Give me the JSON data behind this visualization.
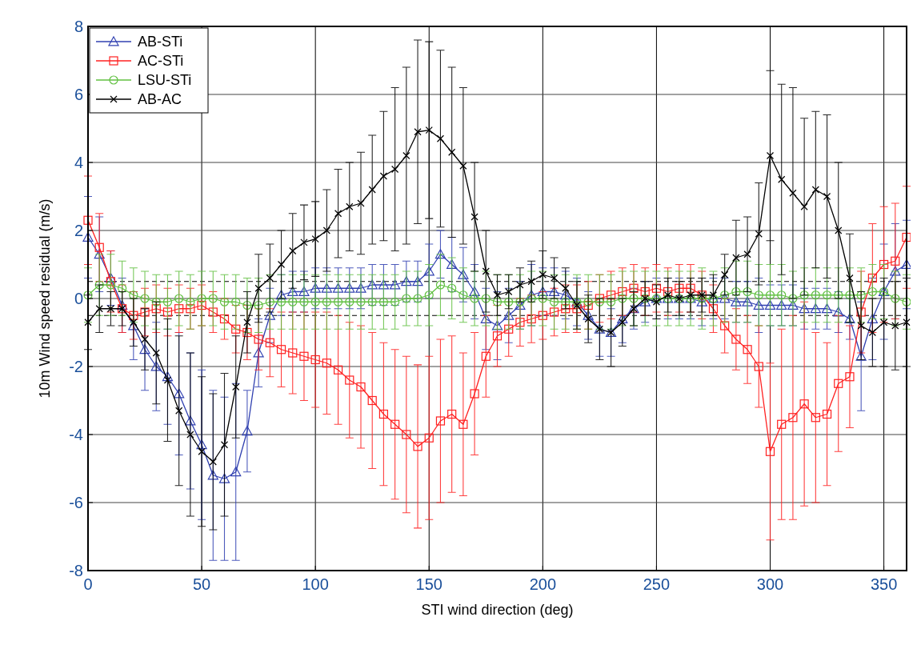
{
  "chart_data": {
    "type": "line",
    "xlabel": "STI wind direction (deg)",
    "ylabel": "10m Wind speed residual (m/s)",
    "x": [
      0,
      5,
      10,
      15,
      20,
      25,
      30,
      35,
      40,
      45,
      50,
      55,
      60,
      65,
      70,
      75,
      80,
      85,
      90,
      95,
      100,
      105,
      110,
      115,
      120,
      125,
      130,
      135,
      140,
      145,
      150,
      155,
      160,
      165,
      170,
      175,
      180,
      185,
      190,
      195,
      200,
      205,
      210,
      215,
      220,
      225,
      230,
      235,
      240,
      245,
      250,
      255,
      260,
      265,
      270,
      275,
      280,
      285,
      290,
      295,
      300,
      305,
      310,
      315,
      320,
      325,
      330,
      335,
      340,
      345,
      350,
      355,
      360
    ],
    "xlim": [
      0,
      360
    ],
    "xticks": [
      0,
      50,
      100,
      150,
      200,
      250,
      300,
      350
    ],
    "ylim": [
      -8,
      8
    ],
    "yticks": [
      -8,
      -6,
      -4,
      -2,
      0,
      2,
      4,
      6,
      8
    ],
    "grid": true,
    "legend": "top left",
    "ref_lines": [
      {
        "axis": "y",
        "value": 0.5,
        "color": "#000000",
        "line_style": "dashed"
      },
      {
        "axis": "y",
        "value": -0.5,
        "color": "#000000",
        "line_style": "dashed"
      }
    ],
    "series": [
      {
        "name": "AB-STi",
        "color": "#3040b0",
        "marker": "triangle",
        "values": [
          1.8,
          1.3,
          0.6,
          -0.2,
          -0.8,
          -1.5,
          -2.0,
          -2.3,
          -2.8,
          -3.6,
          -4.3,
          -5.2,
          -5.3,
          -5.1,
          -3.9,
          -1.6,
          -0.5,
          0.1,
          0.2,
          0.2,
          0.3,
          0.3,
          0.3,
          0.3,
          0.3,
          0.4,
          0.4,
          0.4,
          0.5,
          0.5,
          0.8,
          1.3,
          1.0,
          0.7,
          0.2,
          -0.6,
          -0.8,
          -0.5,
          -0.2,
          0.1,
          0.2,
          0.2,
          0.1,
          -0.1,
          -0.5,
          -0.9,
          -1.0,
          -0.6,
          -0.3,
          -0.1,
          0.0,
          0.0,
          0.0,
          0.0,
          -0.1,
          0.0,
          0.0,
          -0.1,
          -0.1,
          -0.2,
          -0.2,
          -0.2,
          -0.2,
          -0.3,
          -0.3,
          -0.3,
          -0.4,
          -0.6,
          -1.7,
          -0.6,
          0.2,
          0.8,
          1.0
        ],
        "errors": [
          1.2,
          1.1,
          0.8,
          0.8,
          1.0,
          1.2,
          1.3,
          1.4,
          1.8,
          2.0,
          2.2,
          2.5,
          2.4,
          2.6,
          1.2,
          1.0,
          0.8,
          0.6,
          0.6,
          0.6,
          0.6,
          0.6,
          0.6,
          0.6,
          0.6,
          0.6,
          0.6,
          0.6,
          0.6,
          0.6,
          0.8,
          0.7,
          0.8,
          0.8,
          0.8,
          0.9,
          1.0,
          0.8,
          0.7,
          0.9,
          0.7,
          0.7,
          0.7,
          0.7,
          0.7,
          0.8,
          0.7,
          0.7,
          0.6,
          0.6,
          0.6,
          0.6,
          0.6,
          0.6,
          0.7,
          0.6,
          0.6,
          0.6,
          0.6,
          0.8,
          0.6,
          0.6,
          0.6,
          0.6,
          0.6,
          0.6,
          0.6,
          0.6,
          1.6,
          1.2,
          1.4,
          1.4,
          1.3
        ]
      },
      {
        "name": "AC-STi",
        "color": "#ff2020",
        "marker": "square",
        "values": [
          2.3,
          1.5,
          0.5,
          -0.3,
          -0.5,
          -0.4,
          -0.3,
          -0.4,
          -0.3,
          -0.3,
          -0.2,
          -0.4,
          -0.6,
          -0.9,
          -1.0,
          -1.2,
          -1.3,
          -1.5,
          -1.6,
          -1.7,
          -1.8,
          -1.9,
          -2.1,
          -2.4,
          -2.6,
          -3.0,
          -3.4,
          -3.7,
          -4.0,
          -4.35,
          -4.1,
          -3.6,
          -3.4,
          -3.7,
          -2.8,
          -1.7,
          -1.1,
          -0.9,
          -0.7,
          -0.6,
          -0.5,
          -0.4,
          -0.3,
          -0.3,
          -0.2,
          0.0,
          0.1,
          0.2,
          0.3,
          0.2,
          0.3,
          0.2,
          0.3,
          0.3,
          0.1,
          -0.3,
          -0.8,
          -1.2,
          -1.5,
          -2.0,
          -4.5,
          -3.7,
          -3.5,
          -3.1,
          -3.5,
          -3.4,
          -2.5,
          -2.3,
          -0.4,
          0.6,
          1.0,
          1.1,
          1.8
        ],
        "errors": [
          1.3,
          1.0,
          0.9,
          0.7,
          0.7,
          0.7,
          0.7,
          0.7,
          0.7,
          0.6,
          0.6,
          0.6,
          0.6,
          0.7,
          0.8,
          0.9,
          1.0,
          1.1,
          1.2,
          1.3,
          1.4,
          1.5,
          1.6,
          1.7,
          1.8,
          2.0,
          2.1,
          2.2,
          2.3,
          2.4,
          2.4,
          2.4,
          2.3,
          2.1,
          1.8,
          1.2,
          0.9,
          0.8,
          0.7,
          0.7,
          0.7,
          0.7,
          0.7,
          0.7,
          0.7,
          0.7,
          0.7,
          0.7,
          0.7,
          0.7,
          0.7,
          0.7,
          0.7,
          0.7,
          0.7,
          0.7,
          0.8,
          0.9,
          1.0,
          1.2,
          2.6,
          2.8,
          3.0,
          3.0,
          2.5,
          2.1,
          2.0,
          1.5,
          1.2,
          1.6,
          1.7,
          1.7,
          1.5
        ]
      },
      {
        "name": "LSU-STi",
        "color": "#60c040",
        "marker": "circle",
        "values": [
          0.1,
          0.4,
          0.4,
          0.3,
          0.1,
          0.0,
          -0.1,
          -0.1,
          0.0,
          -0.1,
          0.0,
          0.0,
          -0.1,
          -0.1,
          -0.2,
          -0.2,
          -0.1,
          -0.1,
          -0.1,
          -0.1,
          -0.1,
          -0.1,
          -0.1,
          -0.1,
          -0.1,
          -0.1,
          -0.1,
          -0.1,
          0.0,
          0.0,
          0.1,
          0.4,
          0.3,
          0.1,
          0.0,
          0.0,
          -0.1,
          -0.1,
          -0.1,
          0.0,
          0.0,
          -0.1,
          -0.1,
          -0.1,
          -0.1,
          -0.1,
          -0.1,
          0.0,
          0.0,
          0.0,
          0.0,
          0.0,
          0.0,
          0.0,
          0.0,
          0.0,
          0.1,
          0.2,
          0.2,
          0.1,
          0.1,
          0.1,
          0.0,
          0.1,
          0.1,
          0.1,
          0.1,
          0.1,
          0.1,
          0.2,
          0.2,
          0.0,
          -0.1
        ],
        "errors": [
          0.8,
          0.9,
          0.9,
          0.8,
          0.8,
          0.8,
          0.8,
          0.8,
          0.8,
          0.8,
          0.8,
          0.8,
          0.8,
          0.8,
          0.8,
          0.8,
          0.8,
          0.8,
          0.8,
          0.8,
          0.8,
          0.8,
          0.8,
          0.8,
          0.8,
          0.8,
          0.8,
          0.8,
          0.8,
          0.8,
          0.9,
          0.9,
          0.9,
          0.8,
          0.8,
          0.8,
          0.8,
          0.8,
          0.8,
          0.8,
          0.8,
          0.8,
          0.8,
          0.8,
          0.8,
          0.8,
          0.8,
          0.8,
          0.8,
          0.8,
          0.8,
          0.8,
          0.8,
          0.8,
          0.9,
          0.8,
          0.8,
          0.9,
          0.9,
          0.9,
          0.9,
          0.9,
          0.8,
          0.8,
          0.8,
          0.8,
          0.8,
          0.8,
          0.8,
          0.8,
          0.8,
          0.8,
          0.8
        ]
      },
      {
        "name": "AB-AC",
        "color": "#000000",
        "marker": "cross",
        "values": [
          -0.7,
          -0.3,
          -0.3,
          -0.3,
          -0.7,
          -1.2,
          -1.6,
          -2.4,
          -3.3,
          -4.0,
          -4.5,
          -4.8,
          -4.3,
          -2.6,
          -0.7,
          0.3,
          0.6,
          1.0,
          1.4,
          1.65,
          1.75,
          2.0,
          2.5,
          2.7,
          2.8,
          3.2,
          3.6,
          3.8,
          4.2,
          4.9,
          4.95,
          4.7,
          4.3,
          3.9,
          2.4,
          0.8,
          0.1,
          0.2,
          0.4,
          0.5,
          0.7,
          0.6,
          0.3,
          -0.2,
          -0.6,
          -0.9,
          -1.0,
          -0.7,
          -0.3,
          0.0,
          -0.1,
          0.1,
          0.0,
          0.1,
          0.1,
          0.1,
          0.7,
          1.2,
          1.3,
          1.9,
          4.2,
          3.5,
          3.1,
          2.7,
          3.2,
          3.0,
          2.0,
          0.6,
          -0.8,
          -1.0,
          -0.7,
          -0.8,
          -0.7
        ],
        "errors": [
          0.8,
          0.7,
          0.5,
          0.5,
          0.7,
          0.9,
          1.5,
          1.8,
          2.2,
          2.4,
          2.2,
          2.0,
          2.1,
          1.5,
          0.9,
          1.0,
          1.0,
          1.0,
          1.1,
          1.1,
          1.1,
          1.2,
          1.3,
          1.3,
          1.5,
          1.6,
          1.9,
          2.4,
          2.6,
          2.7,
          2.6,
          2.6,
          2.5,
          2.3,
          1.6,
          1.2,
          0.6,
          0.5,
          0.5,
          0.6,
          0.7,
          0.6,
          0.6,
          0.7,
          0.7,
          0.9,
          1.0,
          0.7,
          0.5,
          0.5,
          0.5,
          0.5,
          0.5,
          0.5,
          0.5,
          0.6,
          0.6,
          1.1,
          1.1,
          1.5,
          2.5,
          2.8,
          3.1,
          2.6,
          2.3,
          2.4,
          2.0,
          1.3,
          1.0,
          1.0,
          1.3,
          1.3,
          1.3
        ]
      }
    ]
  }
}
